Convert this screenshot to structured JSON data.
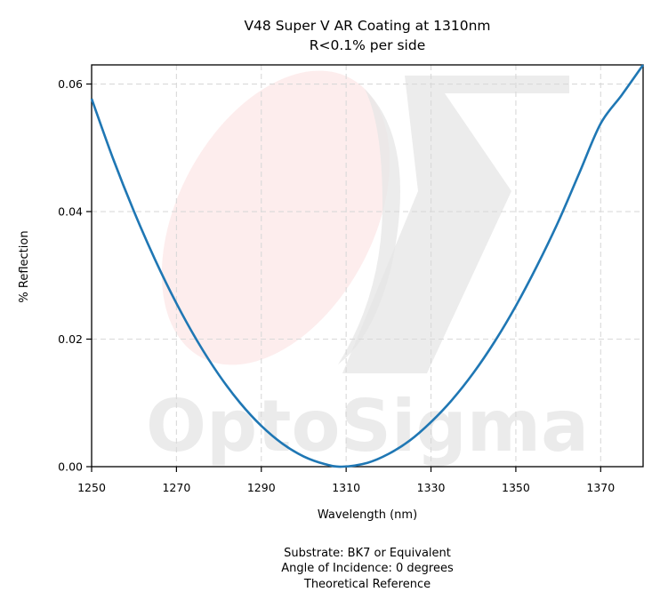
{
  "chart_data": {
    "type": "line",
    "title": "V48 Super V AR Coating at 1310nm",
    "subtitle": "R<0.1% per side",
    "xlabel": "Wavelength (nm)",
    "ylabel": "% Reflection",
    "xlim": [
      1250,
      1380
    ],
    "ylim": [
      0,
      0.063
    ],
    "xticks": [
      1250,
      1270,
      1290,
      1310,
      1330,
      1350,
      1370
    ],
    "yticks": [
      0.0,
      0.02,
      0.04,
      0.06
    ],
    "ytick_labels": [
      "0.00",
      "0.02",
      "0.04",
      "0.06"
    ],
    "grid": true,
    "series": [
      {
        "color": "#1f77b4",
        "x": [
          1250,
          1255,
          1260,
          1265,
          1270,
          1275,
          1280,
          1285,
          1290,
          1295,
          1300,
          1305,
          1309,
          1315,
          1320,
          1325,
          1330,
          1335,
          1340,
          1345,
          1350,
          1355,
          1360,
          1365,
          1370,
          1375,
          1380
        ],
        "y": [
          0.0577,
          0.0484,
          0.04,
          0.0324,
          0.0256,
          0.0196,
          0.0144,
          0.01,
          0.0064,
          0.0036,
          0.0016,
          0.0004,
          0.0,
          0.0006,
          0.002,
          0.0041,
          0.007,
          0.0105,
          0.0147,
          0.0196,
          0.0252,
          0.0315,
          0.0384,
          0.0461,
          0.0538,
          0.0583,
          0.063
        ]
      }
    ]
  },
  "footnotes": [
    "Substrate: BK7 or Equivalent",
    "Angle of Incidence: 0 degrees",
    "Theoretical Reference"
  ],
  "watermark": {
    "brand": "OptoSigma",
    "colors": {
      "ellipse": "#fdeaea",
      "sigma": "#e6e6e6"
    }
  }
}
